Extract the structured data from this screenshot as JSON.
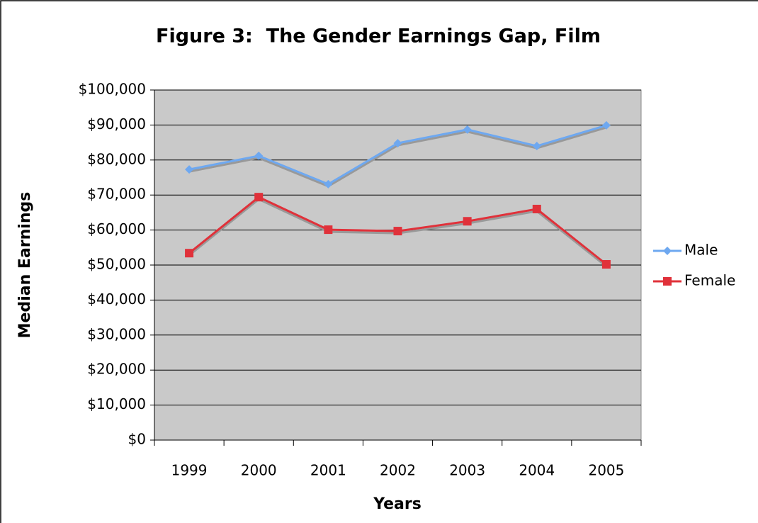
{
  "chart_data": {
    "type": "line",
    "title": "Figure 3:  The Gender Earnings Gap, Film",
    "x_label": "Years",
    "y_label": "Median Earnings",
    "categories": [
      "1999",
      "2000",
      "2001",
      "2002",
      "2003",
      "2004",
      "2005"
    ],
    "series": [
      {
        "name": "Male",
        "color": "#6ea8f0",
        "marker": "diamond",
        "values": [
          77300,
          81200,
          73100,
          84800,
          88700,
          84000,
          89900
        ]
      },
      {
        "name": "Female",
        "color": "#e0313a",
        "marker": "square",
        "values": [
          53400,
          69400,
          60100,
          59700,
          62500,
          66000,
          50200
        ]
      }
    ],
    "ylim": [
      0,
      100000
    ],
    "yticks": [
      {
        "value": 0,
        "label": "$0"
      },
      {
        "value": 10000,
        "label": "$10,000"
      },
      {
        "value": 20000,
        "label": "$20,000"
      },
      {
        "value": 30000,
        "label": "$30,000"
      },
      {
        "value": 40000,
        "label": "$40,000"
      },
      {
        "value": 50000,
        "label": "$50,000"
      },
      {
        "value": 60000,
        "label": "$60,000"
      },
      {
        "value": 70000,
        "label": "$70,000"
      },
      {
        "value": 80000,
        "label": "$80,000"
      },
      {
        "value": 90000,
        "label": "$90,000"
      },
      {
        "value": 100000,
        "label": "$100,000"
      }
    ],
    "grid": true,
    "legend": "right"
  }
}
